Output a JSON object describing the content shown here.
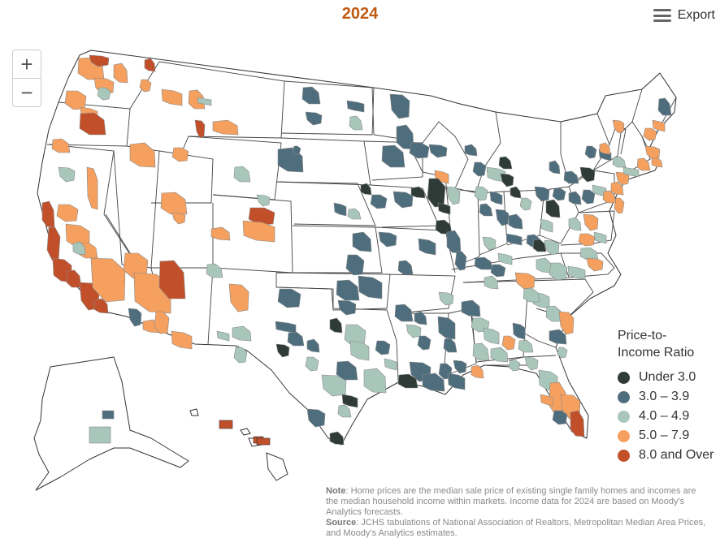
{
  "title": "2024",
  "title_color": "#c05a12",
  "export_label": "Export",
  "zoom": {
    "in_label": "+",
    "out_label": "−"
  },
  "legend": {
    "title_line1": "Price-to-",
    "title_line2": "Income Ratio",
    "items": [
      {
        "label": "Under 3.0",
        "color": "#2e3b37"
      },
      {
        "label": "3.0 – 3.9",
        "color": "#4f6e7d"
      },
      {
        "label": "4.0 – 4.9",
        "color": "#a9c6bb"
      },
      {
        "label": "5.0 – 7.9",
        "color": "#f5a05e"
      },
      {
        "label": "8.0 and Over",
        "color": "#c1502a"
      }
    ]
  },
  "note": {
    "note_label": "Note",
    "note_text": ": Home prices are the median sale price of existing single family homes and incomes are the median household income within markets. Income data for 2024 are based on Moody's Analytics forecasts.",
    "source_label": "Source",
    "source_text": ": JCHS tabulations of National Association of Realtors, Metropolitan Median Area Prices, and Moody's Analytics estimates."
  },
  "map_regions": {
    "west_coast": "8.0 and Over",
    "pacific_northwest": "5.0 – 7.9",
    "mountain_west": "5.0 – 7.9",
    "florida": "5.0 – 7.9",
    "hawaii": "8.0 and Over",
    "northeast": "5.0 – 7.9",
    "midwest": "3.0 – 3.9",
    "south": "4.0 – 4.9",
    "alaska": "4.0 – 4.9"
  }
}
